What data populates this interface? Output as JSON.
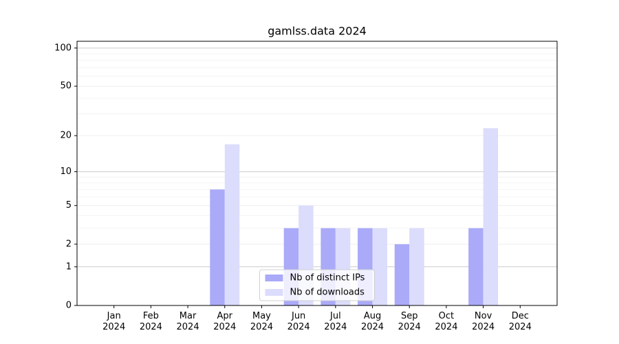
{
  "chart_data": {
    "type": "bar",
    "title": "gamlss.data 2024",
    "categories": [
      "Jan\n2024",
      "Feb\n2024",
      "Mar\n2024",
      "Apr\n2024",
      "May\n2024",
      "Jun\n2024",
      "Jul\n2024",
      "Aug\n2024",
      "Sep\n2024",
      "Oct\n2024",
      "Nov\n2024",
      "Dec\n2024"
    ],
    "series": [
      {
        "name": "Nb of distinct IPs",
        "color": "#aaaaf8",
        "values": [
          0,
          0,
          0,
          7,
          0,
          3,
          3,
          3,
          2,
          0,
          3,
          0
        ]
      },
      {
        "name": "Nb of downloads",
        "color": "#dcdcfc",
        "values": [
          0,
          0,
          0,
          17,
          0,
          5,
          3,
          3,
          3,
          0,
          23,
          0
        ]
      }
    ],
    "yscale": "log1p",
    "ylim": [
      0,
      113
    ],
    "yticks": [
      0,
      1,
      2,
      5,
      10,
      20,
      50,
      100
    ],
    "grid": true,
    "legend": "lower center"
  }
}
